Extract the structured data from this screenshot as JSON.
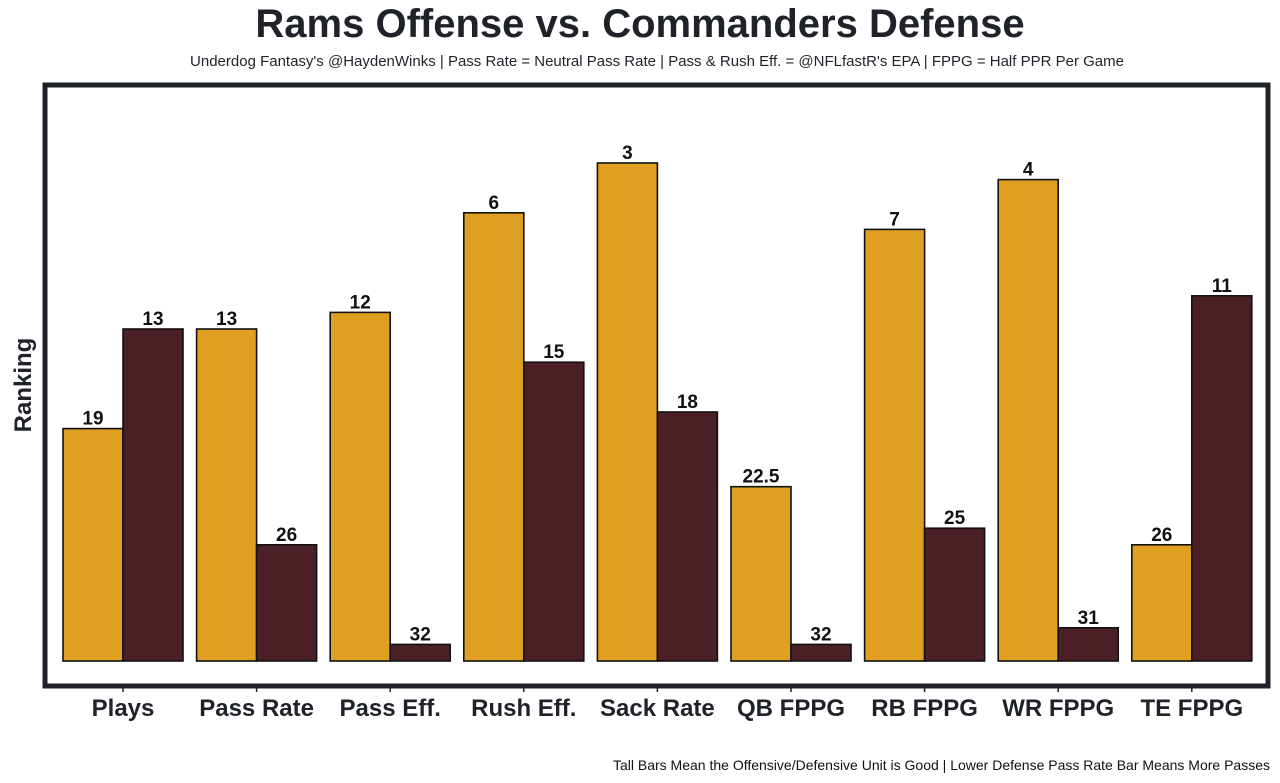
{
  "chart_data": {
    "type": "bar",
    "title": "Rams Offense vs. Commanders Defense",
    "subtitle": "Underdog Fantasy's @HaydenWinks | Pass Rate = Neutral Pass Rate | Pass & Rush Eff. = @NFLfastR's EPA | FPPG = Half PPR Per Game",
    "caption": "Tall Bars Mean the Offensive/Defensive Unit is Good | Lower Defense Pass Rate Bar Means More Passes",
    "xlabel": "",
    "ylabel": "Ranking",
    "y_scale_note": "bar height = 33 - rank (rank 1 tallest)",
    "ylim": [
      0,
      32
    ],
    "grid": false,
    "legend": "none",
    "categories": [
      "Plays",
      "Pass Rate",
      "Pass Eff.",
      "Rush Eff.",
      "Sack Rate",
      "QB FPPG",
      "RB FPPG",
      "WR FPPG",
      "TE FPPG"
    ],
    "series": [
      {
        "name": "Rams Offense",
        "color": "#DFA021",
        "values": [
          19,
          13,
          12,
          6,
          3,
          22.5,
          7,
          4,
          26
        ],
        "labels": [
          "19",
          "13",
          "12",
          "6",
          "3",
          "22.5",
          "7",
          "4",
          "26"
        ]
      },
      {
        "name": "Commanders Defense",
        "color": "#4A1F25",
        "values": [
          13,
          26,
          32,
          15,
          18,
          32,
          25,
          31,
          11
        ],
        "labels": [
          "13",
          "26",
          "32",
          "15",
          "18",
          "32",
          "25",
          "31",
          "11"
        ]
      }
    ]
  }
}
